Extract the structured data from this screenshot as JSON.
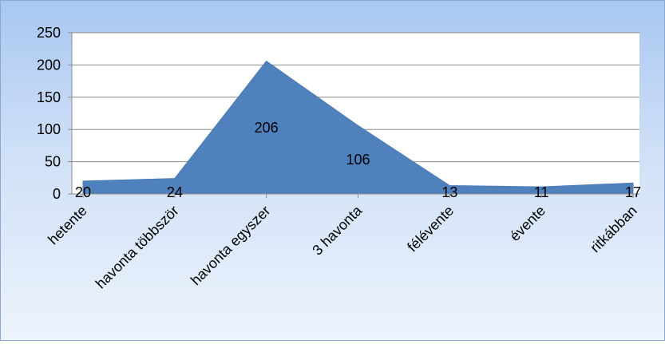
{
  "chart_data": {
    "type": "area",
    "title": "",
    "xlabel": "",
    "ylabel": "",
    "categories": [
      "hetente",
      "havonta többször",
      "havonta  egyszer",
      "3 havonta",
      "félévente",
      "évente",
      "ritkábban"
    ],
    "values": [
      20,
      24,
      206,
      106,
      13,
      11,
      17
    ],
    "data_labels": [
      "20",
      "24",
      "206",
      "106",
      "13",
      "11",
      "17"
    ],
    "ylim": [
      0,
      250
    ],
    "yticks": [
      0,
      50,
      100,
      150,
      200,
      250
    ],
    "ytick_labels": [
      "0",
      "50",
      "100",
      "150",
      "200",
      "250"
    ],
    "grid": "horizontal",
    "legend": "none",
    "colors": {
      "area": "#4f81bd",
      "grid": "#8c8c8c",
      "plot_background": "#ffffff",
      "text": "#000000"
    }
  }
}
